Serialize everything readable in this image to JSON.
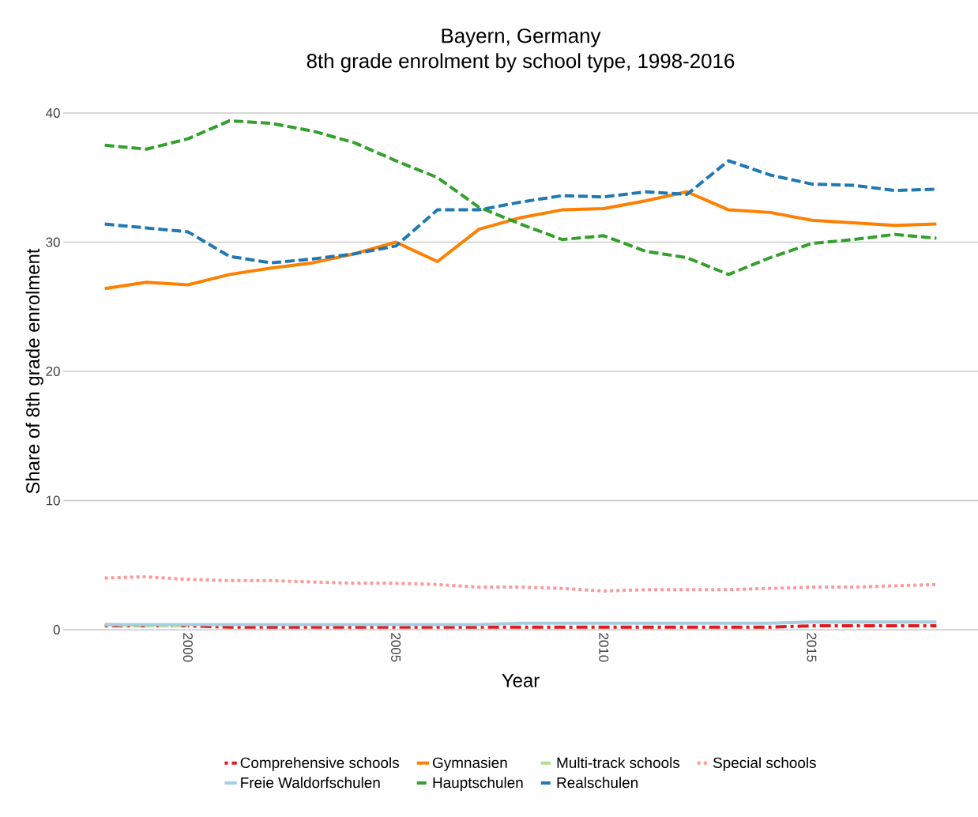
{
  "chart_data": {
    "type": "line",
    "title": "Bayern, Germany",
    "subtitle": "8th grade enrolment by school type, 1998-2016",
    "xlabel": "Year",
    "ylabel": "Share of 8th grade enrolment",
    "x": [
      1998,
      1999,
      2000,
      2001,
      2002,
      2003,
      2004,
      2005,
      2006,
      2007,
      2008,
      2009,
      2010,
      2011,
      2012,
      2013,
      2014,
      2015,
      2016,
      2017,
      2018
    ],
    "xlim": [
      1997,
      2019
    ],
    "xticks": [
      2000,
      2005,
      2010,
      2015
    ],
    "ylim": [
      0,
      40
    ],
    "yticks": [
      0,
      10,
      20,
      30,
      40
    ],
    "grid": "y",
    "legend": "bottom",
    "series": [
      {
        "name": "Comprehensive schools",
        "color": "#e31a1c",
        "line_style": "dashdot",
        "values": [
          0.3,
          0.3,
          0.3,
          0.2,
          0.2,
          0.2,
          0.2,
          0.2,
          0.2,
          0.2,
          0.2,
          0.2,
          0.2,
          0.2,
          0.2,
          0.2,
          0.2,
          0.3,
          0.3,
          0.3,
          0.3
        ]
      },
      {
        "name": "Gymnasien",
        "color": "#ff7f00",
        "line_style": "solid",
        "values": [
          26.4,
          26.9,
          26.7,
          27.5,
          28.0,
          28.4,
          29.1,
          30.0,
          28.5,
          31.0,
          31.9,
          32.5,
          32.6,
          33.2,
          33.9,
          32.5,
          32.3,
          31.7,
          31.5,
          31.3,
          31.4
        ]
      },
      {
        "name": "Multi-track schools",
        "color": "#b2df8a",
        "line_style": "dashed",
        "values": [
          0.4,
          0.3,
          0.3,
          null,
          null,
          null,
          null,
          null,
          null,
          null,
          null,
          null,
          null,
          null,
          null,
          null,
          null,
          null,
          null,
          null,
          null
        ]
      },
      {
        "name": "Special schools",
        "color": "#fb9a99",
        "line_style": "dotted",
        "values": [
          4.0,
          4.1,
          3.9,
          3.8,
          3.8,
          3.7,
          3.6,
          3.6,
          3.5,
          3.3,
          3.3,
          3.2,
          3.0,
          3.1,
          3.1,
          3.1,
          3.2,
          3.3,
          3.3,
          3.4,
          3.5
        ]
      },
      {
        "name": "Freie Waldorfschulen",
        "color": "#a6cee3",
        "line_style": "solid",
        "values": [
          0.4,
          0.4,
          0.4,
          0.4,
          0.4,
          0.4,
          0.4,
          0.4,
          0.4,
          0.4,
          0.5,
          0.5,
          0.5,
          0.5,
          0.5,
          0.5,
          0.5,
          0.6,
          0.6,
          0.6,
          0.6
        ]
      },
      {
        "name": "Hauptschulen",
        "color": "#33a02c",
        "line_style": "dashed",
        "values": [
          37.5,
          37.2,
          38.0,
          39.4,
          39.2,
          38.6,
          37.7,
          36.3,
          35.0,
          32.7,
          31.4,
          30.2,
          30.5,
          29.3,
          28.8,
          27.5,
          28.8,
          29.9,
          30.2,
          30.6,
          30.3
        ]
      },
      {
        "name": "Realschulen",
        "color": "#1f78b4",
        "line_style": "dashed",
        "values": [
          31.4,
          31.1,
          30.8,
          28.9,
          28.4,
          28.7,
          29.1,
          29.7,
          32.5,
          32.5,
          33.1,
          33.6,
          33.5,
          33.9,
          33.7,
          36.3,
          35.2,
          34.5,
          34.4,
          34.0,
          34.1
        ]
      }
    ]
  }
}
